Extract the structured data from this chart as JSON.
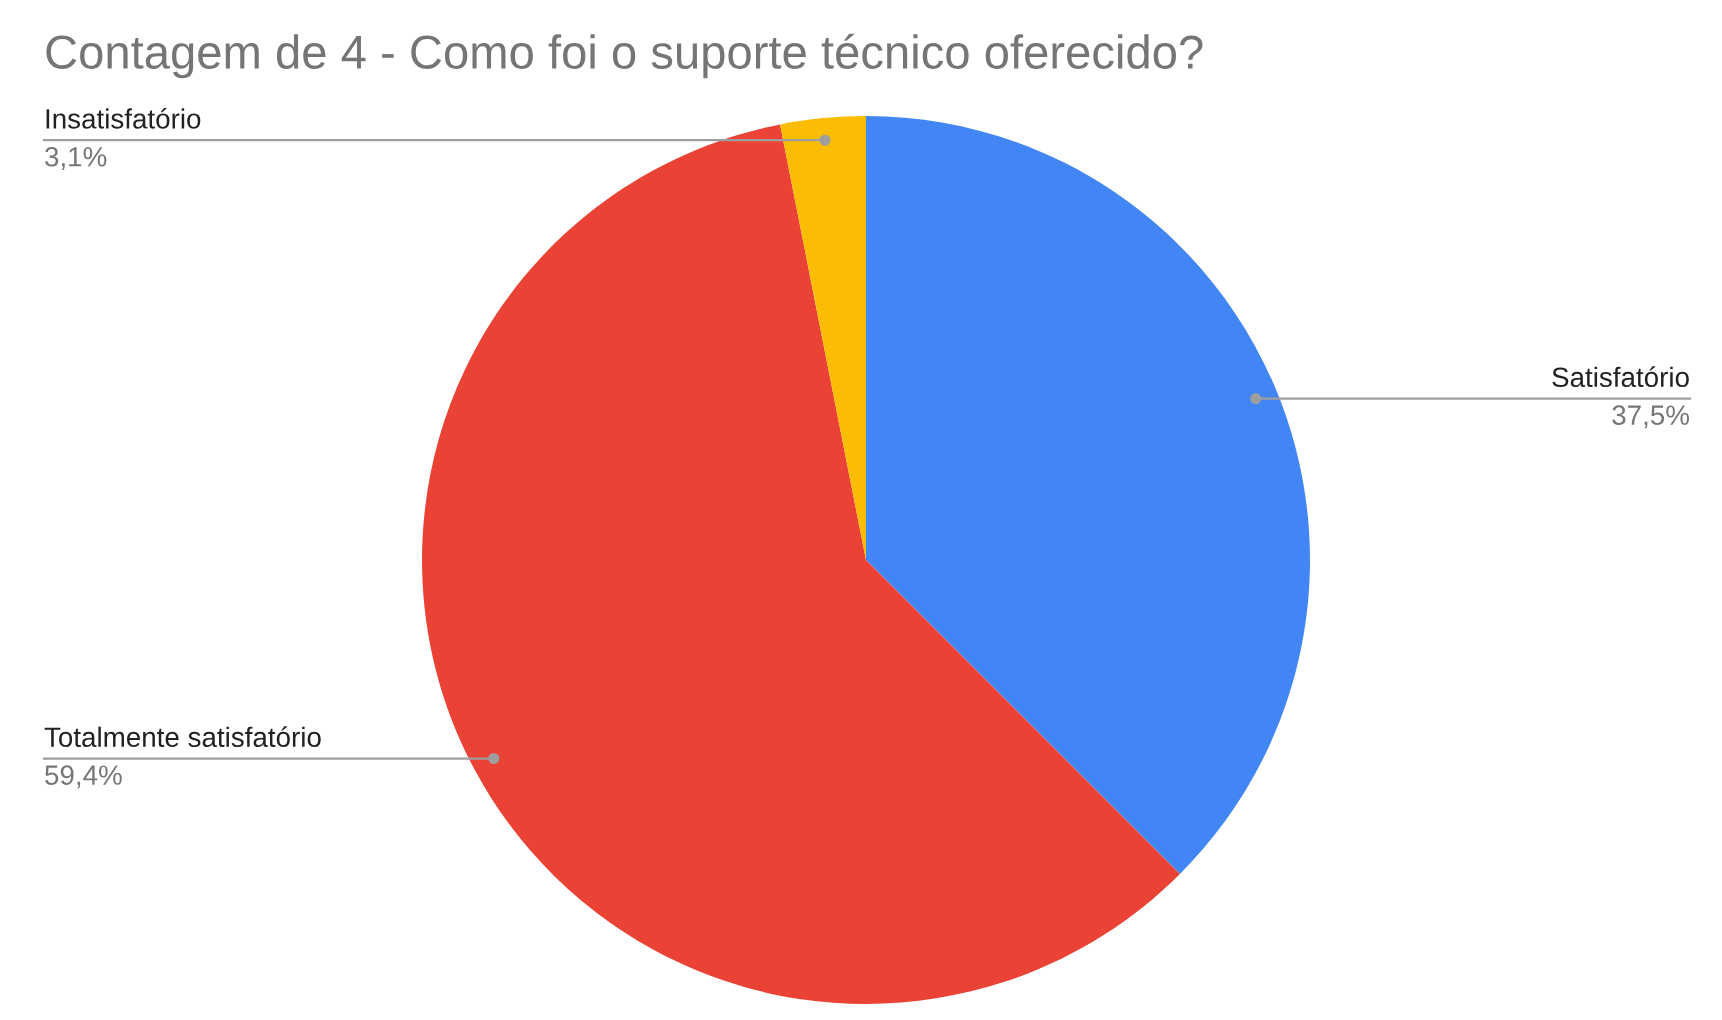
{
  "chart_data": {
    "type": "pie",
    "title": "Contagem de 4 - Como foi o suporte técnico oferecido?",
    "categories": [
      "Satisfatório",
      "Totalmente satisfatório",
      "Insatisfatório"
    ],
    "values": [
      37.5,
      59.4,
      3.1
    ],
    "value_labels": [
      "37,5%",
      "59,4%",
      "3,1%"
    ],
    "colors": [
      "#4285f4",
      "#ea4335",
      "#fbbc04"
    ]
  }
}
